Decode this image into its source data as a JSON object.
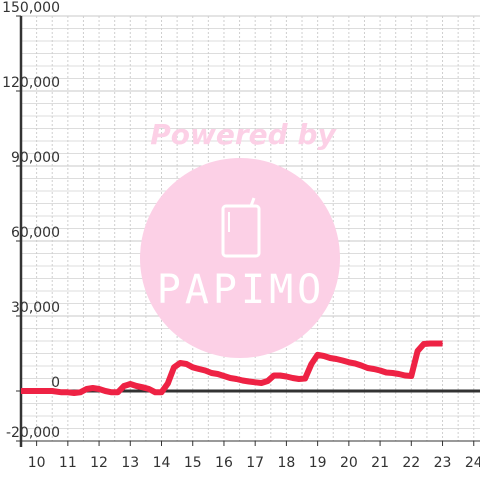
{
  "chart_data": {
    "type": "line",
    "xlim": [
      9.5,
      24.2
    ],
    "ylim": [
      -20000,
      150000
    ],
    "x_ticks": [
      "10",
      "11",
      "12",
      "13",
      "14",
      "15",
      "16",
      "17",
      "18",
      "19",
      "20",
      "21",
      "22",
      "23",
      "24"
    ],
    "y_ticks": [
      "150,000",
      "120,000",
      "90,000",
      "60,000",
      "30,000",
      "0",
      "-20,000"
    ],
    "y_tick_values": [
      150000,
      120000,
      90000,
      60000,
      30000,
      0,
      -20000
    ],
    "grid": true,
    "zero_line": true,
    "series": [
      {
        "color": "#ee2244",
        "x": [
          9.5,
          10.5,
          10.8,
          11.0,
          11.2,
          11.4,
          11.6,
          11.8,
          12.0,
          12.2,
          12.4,
          12.6,
          12.8,
          13.0,
          13.2,
          13.4,
          13.6,
          13.8,
          14.0,
          14.2,
          14.4,
          14.6,
          14.8,
          15.0,
          15.2,
          15.4,
          15.6,
          15.8,
          16.0,
          16.2,
          16.4,
          16.6,
          16.8,
          17.0,
          17.2,
          17.4,
          17.6,
          17.8,
          18.0,
          18.2,
          18.4,
          18.6,
          18.8,
          19.0,
          19.2,
          19.4,
          19.6,
          19.8,
          20.0,
          20.2,
          20.4,
          20.6,
          20.8,
          21.0,
          21.2,
          21.4,
          21.6,
          21.8,
          22.0,
          22.2,
          22.4,
          22.6,
          22.8,
          23.0
        ],
        "y": [
          0,
          0,
          -500,
          -500,
          -800,
          -500,
          800,
          1200,
          800,
          0,
          -500,
          -500,
          2000,
          2800,
          2000,
          1500,
          800,
          -500,
          -500,
          3000,
          9500,
          11200,
          10800,
          9500,
          8800,
          8200,
          7200,
          6800,
          6000,
          5200,
          4800,
          4200,
          3800,
          3500,
          3200,
          4000,
          6200,
          6200,
          5800,
          5200,
          4800,
          5000,
          10800,
          14500,
          14000,
          13200,
          12800,
          12200,
          11500,
          11000,
          10200,
          9200,
          8800,
          8200,
          7400,
          7200,
          6800,
          6200,
          6000,
          16000,
          18800,
          19000,
          19000,
          19000
        ]
      }
    ]
  },
  "watermark": {
    "title": "Powered by",
    "brand": "PAPIMO",
    "color": "#fcd0e6",
    "text_color": "#ffffff",
    "title_color": "#fcd0e6"
  }
}
